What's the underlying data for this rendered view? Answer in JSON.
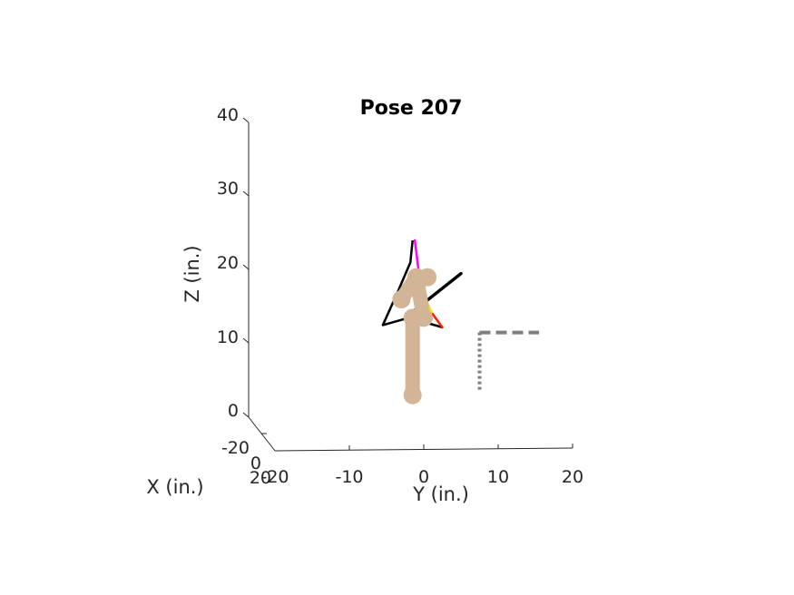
{
  "chart_data": {
    "type": "line",
    "title": "Pose 207",
    "projection": "3d",
    "xlabel": "X (in.)",
    "ylabel": "Y (in.)",
    "zlabel": "Z (in.)",
    "x_ticks": [
      "-20",
      "0",
      "20"
    ],
    "y_ticks": [
      "-20",
      "-10",
      "0",
      "10",
      "20"
    ],
    "z_ticks": [
      "0",
      "10",
      "20",
      "30",
      "40"
    ],
    "xlim": [
      -20,
      20
    ],
    "ylim": [
      -20,
      20
    ],
    "zlim": [
      0,
      40
    ],
    "grid": false,
    "colors": {
      "axis": "#262626",
      "limb": "#d2b596",
      "outline": "#000000",
      "reference": "#808080",
      "trail_magenta": "#ff00ff",
      "trail_yellow": "#ffee00",
      "trail_red": "#ff2000"
    },
    "series": [
      {
        "type": "skeleton",
        "points": [
          {
            "y": -1.5,
            "z": 3
          },
          {
            "y": -1.5,
            "z": 13.5
          },
          {
            "y": 0,
            "z": 13.5
          },
          {
            "y": -3,
            "z": 16
          },
          {
            "y": -1,
            "z": 19
          },
          {
            "y": 0.5,
            "z": 19
          }
        ]
      },
      {
        "type": "outline",
        "points": [
          {
            "y": -1.5,
            "z": 24
          },
          {
            "y": -1.8,
            "z": 21
          },
          {
            "y": -3.5,
            "z": 17
          },
          {
            "y": -5.5,
            "z": 12.5
          },
          {
            "y": -2,
            "z": 13.5
          },
          {
            "y": 2.5,
            "z": 12.2
          }
        ]
      },
      {
        "type": "trail",
        "points": [
          {
            "y": -1.2,
            "z": 24
          },
          {
            "y": -0.7,
            "z": 20
          },
          {
            "y": 0,
            "z": 16.5
          },
          {
            "y": 1.2,
            "z": 14
          },
          {
            "y": 2.5,
            "z": 12.2
          }
        ]
      },
      {
        "type": "rod",
        "points": [
          {
            "y": 5,
            "z": 19.5
          },
          {
            "y": -2.5,
            "z": 13.5
          }
        ]
      },
      {
        "type": "reference-horizontal",
        "points": [
          {
            "y": 7.5,
            "z": 11.5
          },
          {
            "y": 15.5,
            "z": 11.5
          }
        ]
      },
      {
        "type": "reference-vertical",
        "points": [
          {
            "y": 7.5,
            "z": 11.5
          },
          {
            "y": 7.5,
            "z": 3.5
          }
        ]
      }
    ]
  }
}
